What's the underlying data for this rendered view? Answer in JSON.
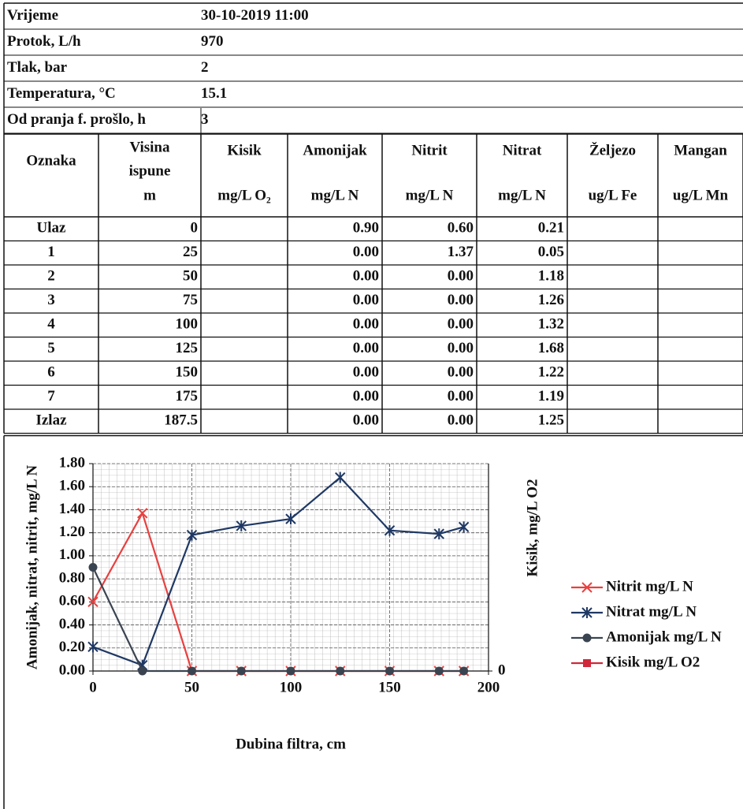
{
  "info": [
    {
      "label": "Vrijeme",
      "value": "30-10-2019 11:00"
    },
    {
      "label": "Protok, L/h",
      "value": "970"
    },
    {
      "label": "Tlak, bar",
      "value": "2"
    },
    {
      "label": "Temperatura, °C",
      "value": "15.1"
    },
    {
      "label": "Od pranja f. prošlo, h",
      "value": "3"
    }
  ],
  "table": {
    "header": [
      {
        "lines": [
          "Oznaka"
        ]
      },
      {
        "lines": [
          "Visina",
          "ispune"
        ],
        "unit": "m"
      },
      {
        "lines": [
          "Kisik"
        ],
        "unit": "mg/L O₂"
      },
      {
        "lines": [
          "Amonijak"
        ],
        "unit": "mg/L N"
      },
      {
        "lines": [
          "Nitrit"
        ],
        "unit": "mg/L N"
      },
      {
        "lines": [
          "Nitrat"
        ],
        "unit": "mg/L N"
      },
      {
        "lines": [
          "Željezo"
        ],
        "unit": "ug/L Fe"
      },
      {
        "lines": [
          "Mangan"
        ],
        "unit": "ug/L Mn"
      }
    ],
    "rows": [
      [
        "Ulaz",
        "0",
        null,
        "0.90",
        "0.60",
        "0.21",
        null,
        null
      ],
      [
        "1",
        "25",
        null,
        "0.00",
        "1.37",
        "0.05",
        null,
        null
      ],
      [
        "2",
        "50",
        null,
        "0.00",
        "0.00",
        "1.18",
        null,
        null
      ],
      [
        "3",
        "75",
        null,
        "0.00",
        "0.00",
        "1.26",
        null,
        null
      ],
      [
        "4",
        "100",
        null,
        "0.00",
        "0.00",
        "1.32",
        null,
        null
      ],
      [
        "5",
        "125",
        null,
        "0.00",
        "0.00",
        "1.68",
        null,
        null
      ],
      [
        "6",
        "150",
        null,
        "0.00",
        "0.00",
        "1.22",
        null,
        null
      ],
      [
        "7",
        "175",
        null,
        "0.00",
        "0.00",
        "1.19",
        null,
        null
      ],
      [
        "Izlaz",
        "187.5",
        null,
        "0.00",
        "0.00",
        "1.25",
        null,
        null
      ]
    ]
  },
  "chart_data": {
    "type": "line",
    "x_label": "Dubina filtra, cm",
    "y_label": "Amonijak, nitrat, nitrit, mg/L N",
    "y2_label": "Kisik, mg/L O2",
    "x": [
      0,
      25,
      50,
      75,
      100,
      125,
      150,
      175,
      187.5
    ],
    "series": [
      {
        "name": "Nitrit mg/L N",
        "color": "#e8403f",
        "marker": "x",
        "values": [
          0.6,
          1.37,
          0,
          0,
          0,
          0,
          0,
          0,
          0
        ]
      },
      {
        "name": "Nitrat mg/L N",
        "color": "#1f3864",
        "marker": "star",
        "values": [
          0.21,
          0.05,
          1.18,
          1.26,
          1.32,
          1.68,
          1.22,
          1.19,
          1.25
        ]
      },
      {
        "name": "Amonijak mg/L N",
        "color": "#3a4450",
        "marker": "circle",
        "values": [
          0.9,
          0,
          0,
          0,
          0,
          0,
          0,
          0,
          0
        ]
      },
      {
        "name": "Kisik mg/L O2",
        "color": "#d0283a",
        "marker": "square",
        "axis": "y2",
        "values": [
          null,
          null,
          null,
          null,
          null,
          null,
          null,
          null,
          null
        ]
      }
    ],
    "xlim": [
      0,
      200
    ],
    "xticks": [
      0,
      50,
      100,
      150,
      200
    ],
    "ylim": [
      0,
      1.8
    ],
    "yticks": [
      {
        "value": 0,
        "label": "0.00"
      },
      {
        "value": 0.2,
        "label": "0.20"
      },
      {
        "value": 0.4,
        "label": "0.40"
      },
      {
        "value": 0.6,
        "label": "0.60"
      },
      {
        "value": 0.8,
        "label": "0.80"
      },
      {
        "value": 1,
        "label": "1.00"
      },
      {
        "value": 1.2,
        "label": "1.20"
      },
      {
        "value": 1.4,
        "label": "1.40"
      },
      {
        "value": 1.6,
        "label": "1.60"
      },
      {
        "value": 1.8,
        "label": "1.80"
      }
    ],
    "y2lim": [
      0,
      1
    ],
    "y2ticks": [
      0
    ],
    "grid": true,
    "legend": "right"
  }
}
